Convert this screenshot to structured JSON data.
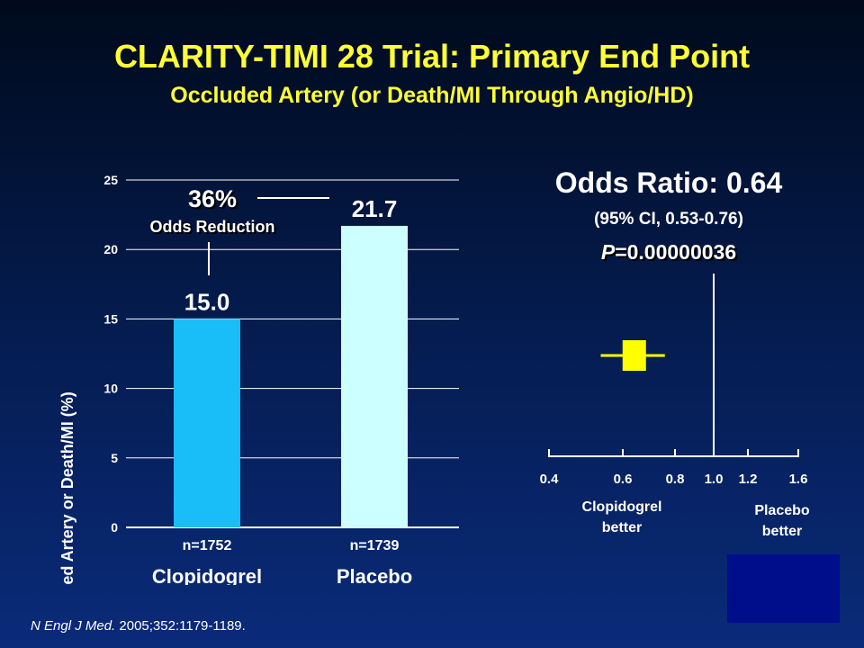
{
  "slide": {
    "title": "CLARITY-TIMI 28 Trial: Primary End Point",
    "subtitle": "Occluded Artery (or Death/MI Through Angio/HD)"
  },
  "citation": {
    "journal": "N Engl J Med.",
    "ref": " 2005;352:1179-1189."
  },
  "colors": {
    "title": "#ffff33",
    "clopidogrel_bar": "#19bdf8",
    "placebo_bar": "#ccffff",
    "forest_marker": "#ffff00",
    "corner_box": "#000e8c"
  },
  "chart_data": [
    {
      "type": "bar",
      "categories": [
        "Clopidogrel",
        "Placebo"
      ],
      "sample_sizes": [
        "n=1752",
        "n=1739"
      ],
      "values": [
        15.0,
        21.7
      ],
      "value_labels": [
        "15.0",
        "21.7"
      ],
      "ylabel": "Occluded Artery or Death/MI (%)",
      "ylim": [
        0,
        25
      ],
      "yticks": [
        0,
        5,
        10,
        15,
        20,
        25
      ],
      "grid": true,
      "annotation": {
        "percent": "36%",
        "text": "Odds Reduction"
      }
    },
    {
      "type": "scatter",
      "title": "Odds Ratio: 0.64",
      "ci_text": "(95% CI, 0.53-0.76)",
      "p_label": "P",
      "p_value": "=0.00000036",
      "x_ticks": [
        0.4,
        0.6,
        0.8,
        1.0,
        1.2,
        1.6
      ],
      "x_tick_labels": [
        "0.4",
        "0.6",
        "0.8",
        "1.0",
        "1.2",
        "1.6"
      ],
      "reference_line": 1.0,
      "point": 0.64,
      "ci": [
        0.53,
        0.76
      ],
      "left_label": [
        "Clopidogrel",
        "better"
      ],
      "right_label": [
        "Placebo",
        "better"
      ]
    }
  ]
}
